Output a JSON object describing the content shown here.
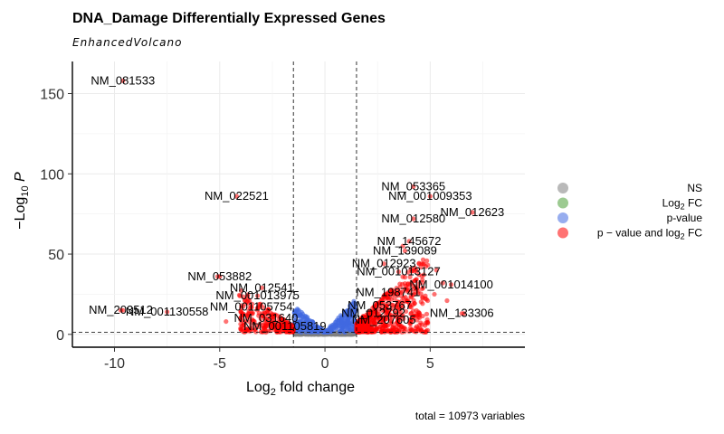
{
  "chart_data": {
    "type": "scatter",
    "title": "DNA_Damage Differentially Expressed Genes",
    "subtitle": "EnhancedVolcano",
    "xlabel_main": "Log",
    "xlabel_sub": "2",
    "xlabel_rest": " fold change",
    "ylabel_main": "−Log",
    "ylabel_sub": "10",
    "ylabel_var": "P",
    "xlim": [
      -12,
      9.5
    ],
    "ylim": [
      -8,
      170
    ],
    "x_ticks": [
      -10,
      -5,
      0,
      5
    ],
    "x_tick_labels": [
      "-10",
      "-5",
      "0",
      "5"
    ],
    "y_ticks": [
      0,
      50,
      100,
      150
    ],
    "y_tick_labels": [
      "0",
      "50",
      "100",
      "150"
    ],
    "fc_cutoff": 1.5,
    "p_cutoff": 1.3,
    "grid": true,
    "legend_position": "right",
    "caption": "total = 10973 variables",
    "legend": [
      {
        "label": "NS",
        "sub": "",
        "suffix": "",
        "color": "#808080"
      },
      {
        "label": "Log",
        "sub": "2",
        "suffix": " FC",
        "color": "#4a9e36"
      },
      {
        "label": "p-value",
        "sub": "",
        "suffix": "",
        "color": "#4169e1"
      },
      {
        "label": "p − value and log",
        "sub": "2",
        "suffix": " FC",
        "color": "#ff0000"
      }
    ],
    "colors": {
      "NS": "#808080",
      "FC": "#4a9e36",
      "P": "#4169e1",
      "both": "#ff0000"
    },
    "labeled_points": [
      {
        "name": "NM_081533",
        "x": -9.6,
        "y": 158
      },
      {
        "name": "NM_022521",
        "x": -4.2,
        "y": 86
      },
      {
        "name": "NM_053365",
        "x": 4.2,
        "y": 92
      },
      {
        "name": "NM_001009353",
        "x": 5.0,
        "y": 86
      },
      {
        "name": "NM_012623",
        "x": 7.0,
        "y": 76
      },
      {
        "name": "NM_012580",
        "x": 4.2,
        "y": 72
      },
      {
        "name": "NM_145672",
        "x": 4.0,
        "y": 58
      },
      {
        "name": "NM_139089",
        "x": 3.8,
        "y": 52
      },
      {
        "name": "NM_012923",
        "x": 2.8,
        "y": 44
      },
      {
        "name": "NM_053882",
        "x": -5.0,
        "y": 36
      },
      {
        "name": "NM_001013127",
        "x": 3.5,
        "y": 39
      },
      {
        "name": "NM_001014100",
        "x": 6.0,
        "y": 31
      },
      {
        "name": "NM_012541",
        "x": -3.0,
        "y": 29
      },
      {
        "name": "NM_198741",
        "x": 3.0,
        "y": 26
      },
      {
        "name": "NM_001013975",
        "x": -3.2,
        "y": 24
      },
      {
        "name": "NM_203512",
        "x": -9.7,
        "y": 15
      },
      {
        "name": "NM_053767",
        "x": 2.6,
        "y": 18
      },
      {
        "name": "NM_001105754",
        "x": -3.5,
        "y": 17
      },
      {
        "name": "NM_012792",
        "x": 2.3,
        "y": 13
      },
      {
        "name": "NM_133306",
        "x": 6.5,
        "y": 13
      },
      {
        "name": "NM_001130558",
        "x": -7.5,
        "y": 14
      },
      {
        "name": "NM_031640",
        "x": -2.8,
        "y": 10
      },
      {
        "name": "NM_207605",
        "x": 2.8,
        "y": 9
      },
      {
        "name": "NM_001105819",
        "x": -1.9,
        "y": 5
      }
    ]
  }
}
